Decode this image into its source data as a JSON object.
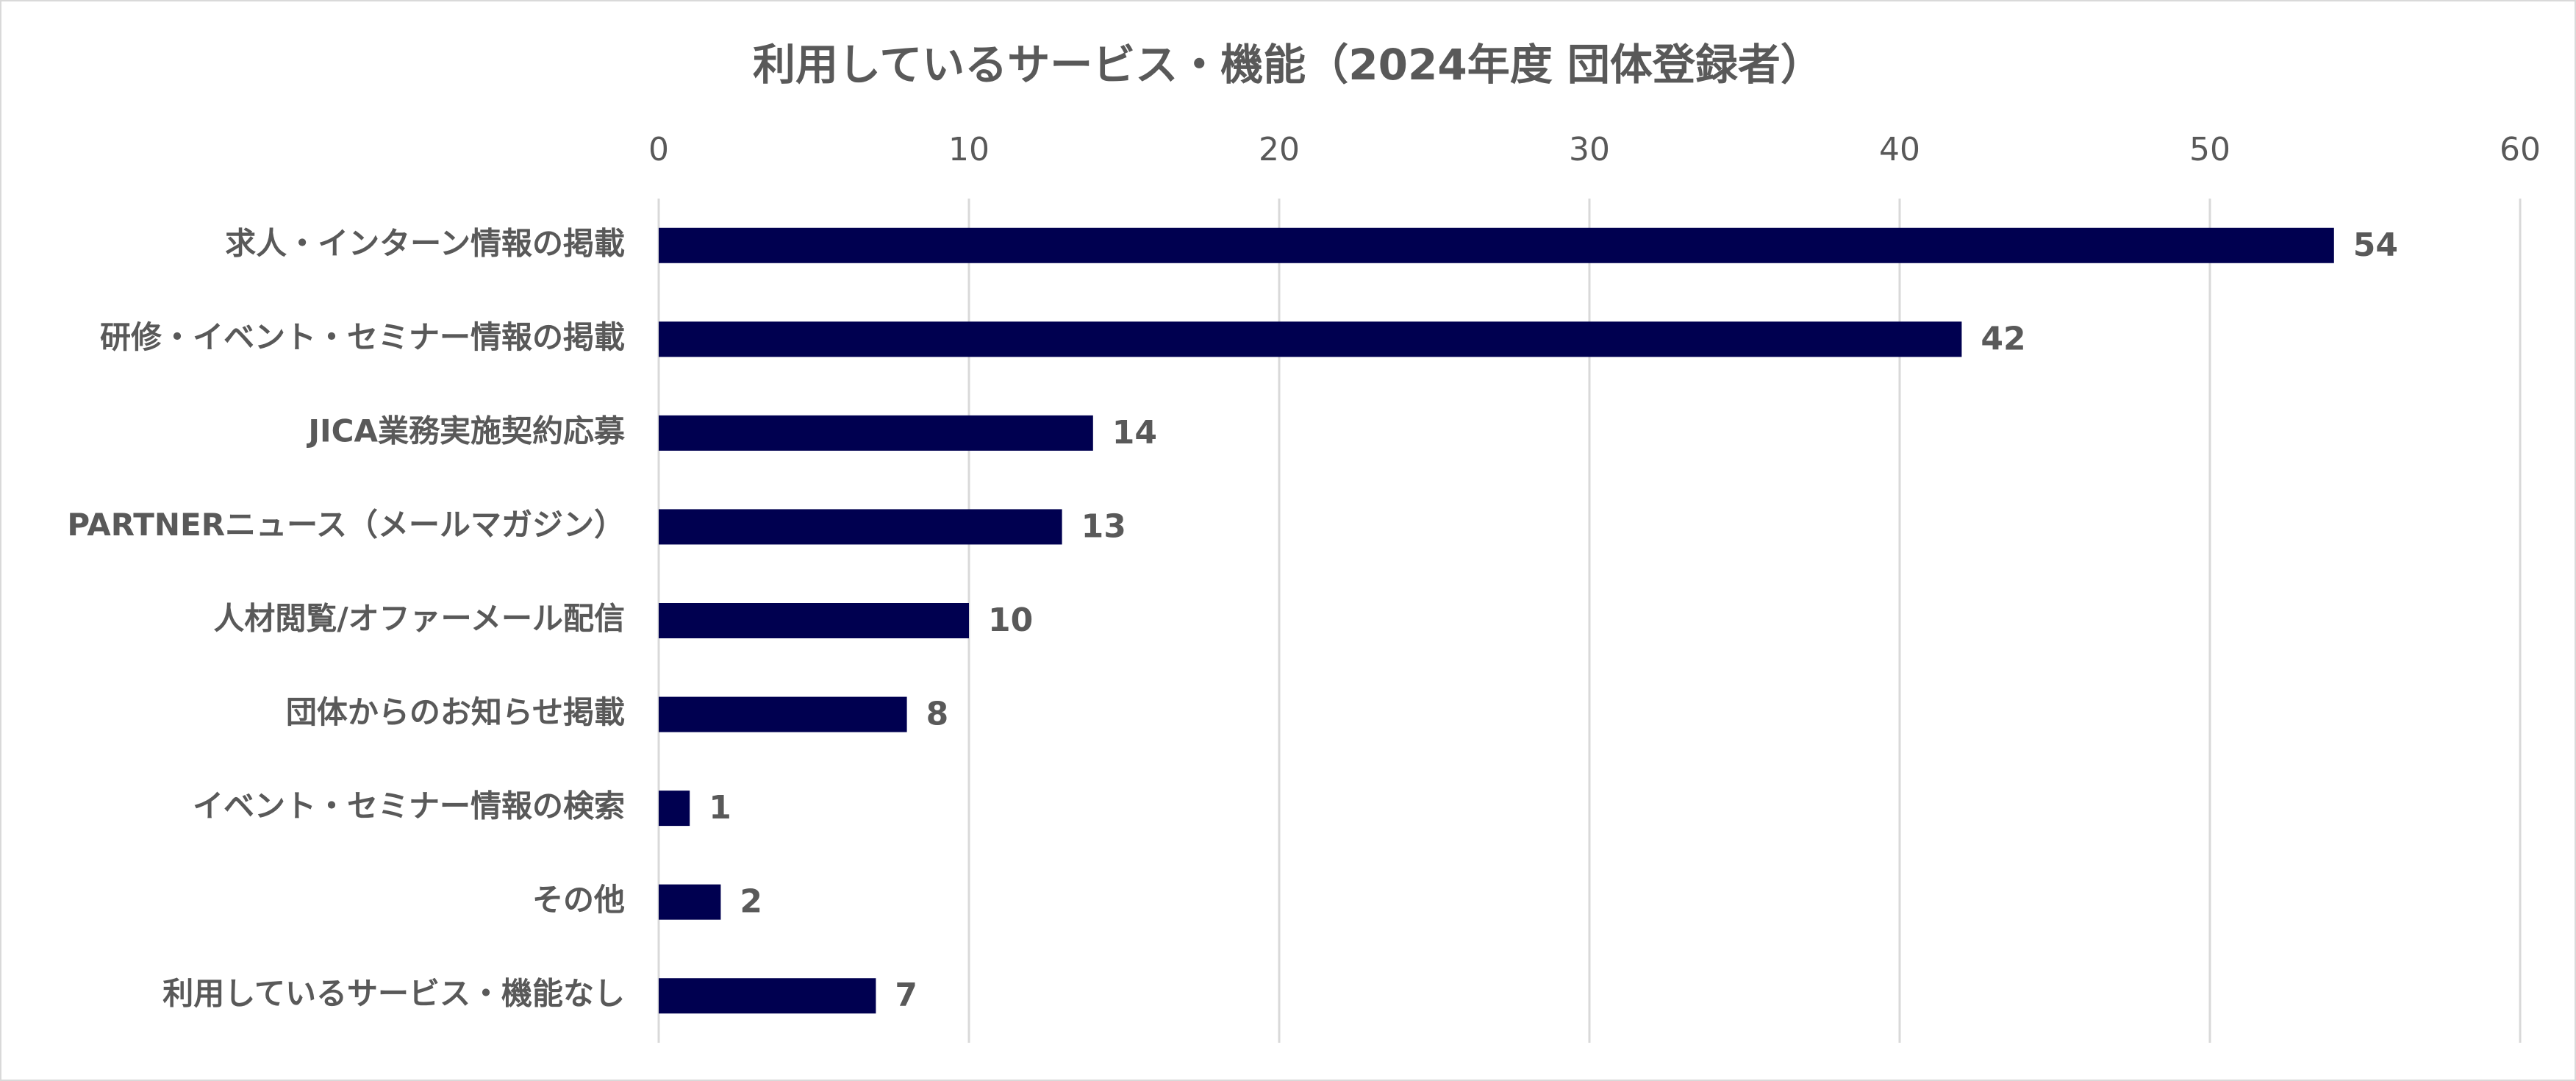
{
  "chart_data": {
    "type": "bar",
    "orientation": "horizontal",
    "title": "利用しているサービス・機能（2024年度 団体登録者）",
    "xlim": [
      0,
      60
    ],
    "ticks": [
      "0",
      "10",
      "20",
      "30",
      "40",
      "50",
      "60"
    ],
    "tick_values": [
      0,
      10,
      20,
      30,
      40,
      50,
      60
    ],
    "axis_position": "top",
    "grid": true,
    "legend": "none",
    "bar_color": "#000050",
    "categories": [
      "求人・インターン情報の掲載",
      "研修・イベント・セミナー情報の掲載",
      "JICA業務実施契約応募",
      "PARTNERニュース（メールマガジン）",
      "人材閲覧/オファーメール配信",
      "団体からのお知らせ掲載",
      "イベント・セミナー情報の検索",
      "その他",
      "利用しているサービス・機能なし"
    ],
    "values": [
      54,
      42,
      14,
      13,
      10,
      8,
      1,
      2,
      7
    ]
  }
}
